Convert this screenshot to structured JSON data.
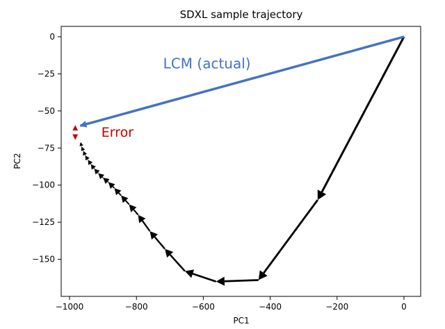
{
  "chart_data": {
    "type": "line",
    "title": "SDXL sample trajectory",
    "xlabel": "PC1",
    "ylabel": "PC2",
    "xlim": [
      -1025,
      50
    ],
    "ylim": [
      -175,
      7
    ],
    "xticks": [
      -1000,
      -800,
      -600,
      -400,
      -200,
      0
    ],
    "yticks": [
      0,
      -25,
      -50,
      -75,
      -100,
      -125,
      -150
    ],
    "xtick_labels": [
      "−1000",
      "−800",
      "−600",
      "−400",
      "−200",
      "0"
    ],
    "ytick_labels": [
      "0",
      "−25",
      "−50",
      "−75",
      "−100",
      "−125",
      "−150"
    ],
    "grid": false,
    "series": [
      {
        "color": "#000000",
        "x": [
          0,
          -258,
          -435,
          -562,
          -655,
          -715,
          -760,
          -795,
          -822,
          -846,
          -866,
          -884,
          -900,
          -914,
          -926,
          -936,
          -945,
          -953,
          -959,
          -964,
          -967
        ],
        "y": [
          0,
          -110,
          -164,
          -165,
          -158,
          -143,
          -131,
          -120,
          -113,
          -107,
          -102,
          -98,
          -95,
          -92,
          -89,
          -86,
          -83,
          -80,
          -77,
          -74,
          -71
        ]
      },
      {
        "color": "#4472c4",
        "x": [
          0,
          -968
        ],
        "y": [
          0,
          -60
        ]
      }
    ],
    "annotations": [
      {
        "text": "LCM (actual)",
        "x": -720,
        "y": -18,
        "color": "#4472c4"
      },
      {
        "text": "Error",
        "x": -905,
        "y": -64,
        "color": "#c00000"
      }
    ],
    "error_marker": {
      "x": -983,
      "y_top": -60,
      "y_bottom": -69,
      "color": "#c00000"
    }
  }
}
